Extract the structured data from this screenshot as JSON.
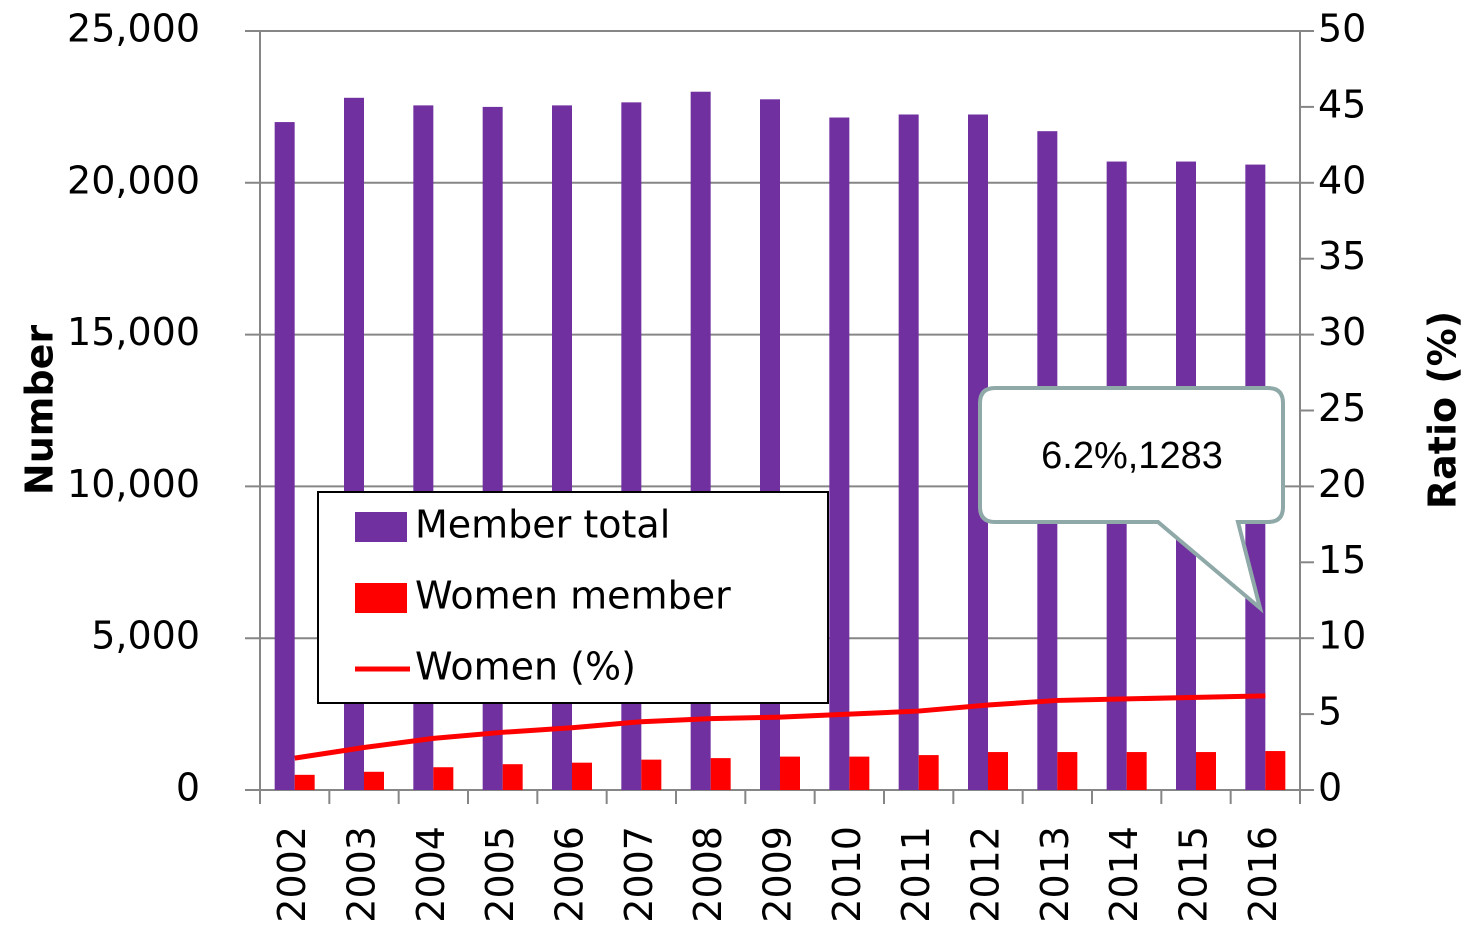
{
  "chart_data": {
    "type": "bar",
    "categories": [
      "2002",
      "2003",
      "2004",
      "2005",
      "2006",
      "2007",
      "2008",
      "2009",
      "2010",
      "2011",
      "2012",
      "2013",
      "2014",
      "2015",
      "2016"
    ],
    "series": [
      {
        "name": "Member total",
        "color": "#7030a0",
        "type": "bar",
        "values": [
          22000,
          22800,
          22550,
          22500,
          22550,
          22650,
          23000,
          22750,
          22150,
          22250,
          22250,
          21700,
          20700,
          20700,
          20600
        ]
      },
      {
        "name": "Women member",
        "color": "#ff0000",
        "type": "bar",
        "values": [
          500,
          600,
          750,
          850,
          900,
          1000,
          1050,
          1100,
          1100,
          1150,
          1250,
          1250,
          1250,
          1250,
          1283
        ]
      },
      {
        "name": "Women (%)",
        "color": "#ff0000",
        "type": "line",
        "axis": "y2",
        "values": [
          2.1,
          2.8,
          3.4,
          3.8,
          4.1,
          4.5,
          4.7,
          4.8,
          5.0,
          5.2,
          5.6,
          5.9,
          6.0,
          6.1,
          6.2
        ]
      }
    ],
    "y_label": "Number",
    "y2_label": "Ratio (%)",
    "ylim": [
      0,
      25000
    ],
    "yticks": [
      0,
      {
        "value": 5000,
        "label": "5,000"
      },
      {
        "value": 10000,
        "label": "10,000"
      },
      {
        "value": 15000,
        "label": "15,000"
      },
      {
        "value": 20000,
        "label": "20,000"
      },
      {
        "value": 25000,
        "label": "25,000"
      }
    ],
    "y2lim": [
      0,
      50
    ],
    "y2ticks": [
      0,
      5,
      10,
      15,
      20,
      25,
      30,
      35,
      40,
      45,
      50
    ],
    "grid": true,
    "annotation": "6.2%,1283"
  }
}
